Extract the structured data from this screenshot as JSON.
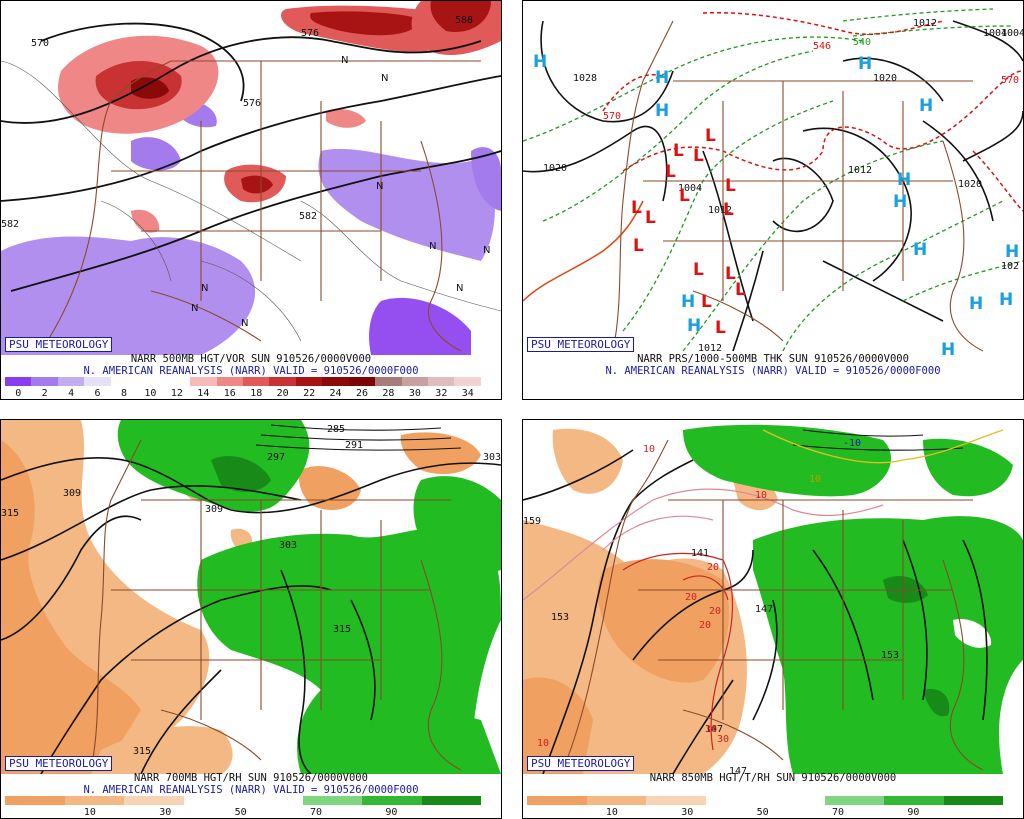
{
  "panels": [
    {
      "id": "p1",
      "badge": "PSU METEOROLOGY",
      "title_line1": "NARR 500MB HGT/VOR SUN 910526/0000V000",
      "title_line2": "N. AMERICAN REANALYSIS (NARR) VALID = 910526/0000F000",
      "colorbar": {
        "colors": [
          "#8a3cf0",
          "#a37bec",
          "#c2aeef",
          "#e7e0f7",
          "#ffffff",
          "#ffffff",
          "#ffffff",
          "#f7b9b9",
          "#ef8787",
          "#e05a5a",
          "#c83232",
          "#a81414",
          "#8a0a0a",
          "#7a0606",
          "#a87a7a",
          "#c9a0a0",
          "#e0bcbc",
          "#f3d2d2"
        ],
        "ticks": [
          "0",
          "2",
          "4",
          "6",
          "8",
          "10",
          "12",
          "14",
          "16",
          "18",
          "20",
          "22",
          "24",
          "26",
          "28",
          "30",
          "32",
          "34"
        ]
      },
      "contour_labels": [
        "570",
        "576",
        "582",
        "576",
        "582",
        "588"
      ],
      "symbols": [
        "N",
        "N",
        "N",
        "N",
        "N",
        "N",
        "N",
        "N",
        "N"
      ]
    },
    {
      "id": "p2",
      "badge": "PSU METEOROLOGY",
      "title_line1": "NARR PRS/1000-500MB THK SUN 910526/0000V000",
      "title_line2": "N. AMERICAN REANALYSIS (NARR) VALID = 910526/0000F000",
      "contour_labels": [
        "1028",
        "1020",
        "1020",
        "1012",
        "1004",
        "1012",
        "1004",
        "1012",
        "1020",
        "1004",
        "102",
        "1012",
        "570",
        "546",
        "540",
        "570"
      ],
      "highs": [
        "H",
        "H",
        "H",
        "H",
        "H",
        "H",
        "H",
        "H",
        "H",
        "H",
        "H",
        "H",
        "H",
        "H"
      ],
      "lows": [
        "L",
        "L",
        "L",
        "L",
        "L",
        "L",
        "L",
        "L",
        "L",
        "L",
        "L",
        "L",
        "L",
        "L",
        "L"
      ]
    },
    {
      "id": "p3",
      "badge": "PSU METEOROLOGY",
      "title_line1": "NARR 700MB HGT/RH SUN 910526/0000V000",
      "title_line2": "N. AMERICAN REANALYSIS (NARR) VALID = 910526/0000F000",
      "colorbar": {
        "colors": [
          "#f0a060",
          "#f4b884",
          "#f9d4b4",
          "#ffffff",
          "#ffffff",
          "#7fd67f",
          "#33b833",
          "#178a17"
        ],
        "ticks": [
          "10",
          "30",
          "50",
          "70",
          "90"
        ]
      },
      "contour_labels": [
        "285",
        "291",
        "297",
        "303",
        "303",
        "309",
        "309",
        "315",
        "315",
        "315"
      ]
    },
    {
      "id": "p4",
      "badge": "PSU METEOROLOGY",
      "title_line1": "NARR 850MB HGT/T/RH SUN 910526/0000V000",
      "title_line2": "",
      "colorbar": {
        "colors": [
          "#f0a060",
          "#f4b884",
          "#f9d4b4",
          "#ffffff",
          "#ffffff",
          "#7fd67f",
          "#33b833",
          "#178a17"
        ],
        "ticks": [
          "10",
          "30",
          "50",
          "70",
          "90"
        ]
      },
      "contour_labels": [
        "159",
        "153",
        "147",
        "147",
        "141",
        "147",
        "153",
        "-10",
        "10",
        "10",
        "10",
        "20",
        "20",
        "20",
        "20",
        "30",
        "30",
        "10"
      ]
    }
  ],
  "colors": {
    "border_brown": "#8b4a2b",
    "vort_red": "#e05a5a",
    "vort_purple": "#8a5cf0",
    "rh_green": "#22bb22",
    "rh_orange": "#f0a060",
    "high_blue": "#1aa0e0",
    "low_red": "#dd1111",
    "thk_green": "#229922",
    "thk_red": "#dd1111"
  }
}
